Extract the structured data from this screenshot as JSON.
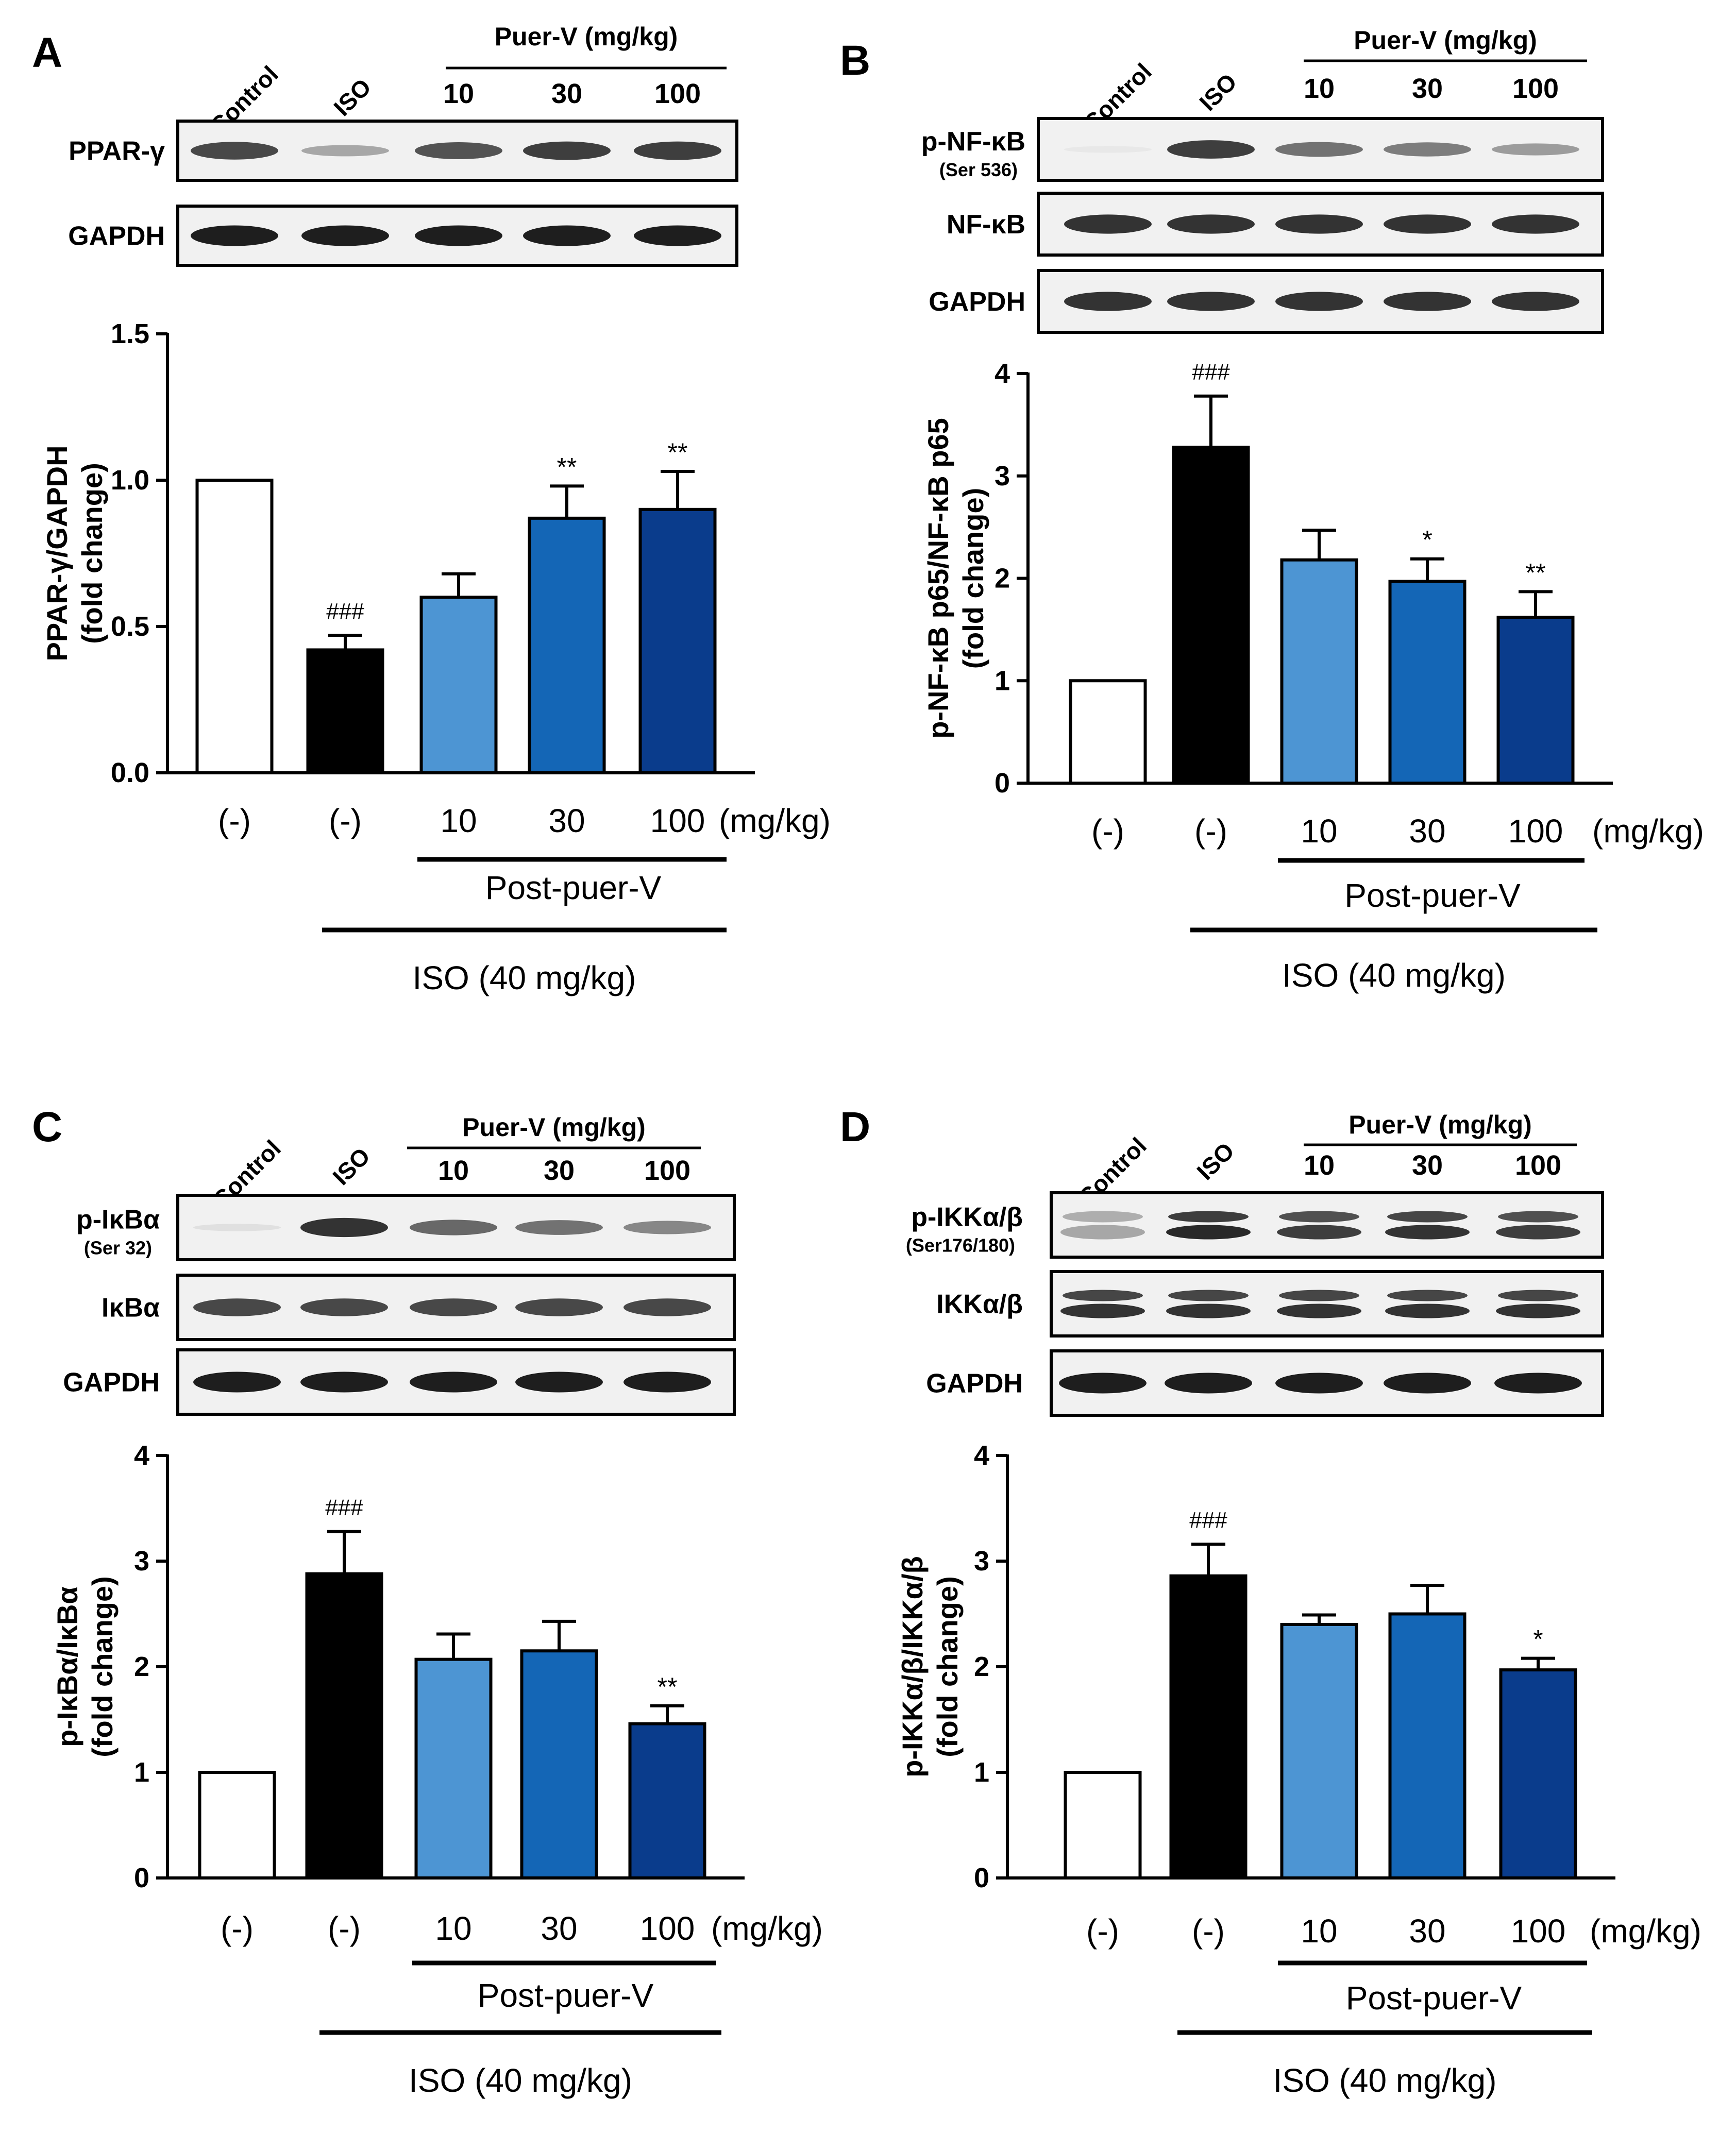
{
  "figure": {
    "header": {
      "control": "Control",
      "iso": "ISO",
      "puer_v": "Puer-V (mg/kg)",
      "doses": [
        "10",
        "30",
        "100"
      ]
    },
    "x_axis": {
      "groups": [
        "(-)",
        "(-)",
        "10",
        "30",
        "100"
      ],
      "unit": "(mg/kg)",
      "post_label": "Post-puer-V",
      "iso_label": "ISO (40 mg/kg)"
    },
    "colors": {
      "control_bar": "#ffffff",
      "iso_bar": "#000000",
      "dose_10": "#4d95d3",
      "dose_30": "#1466b6",
      "dose_100": "#0a3c8c",
      "blot_background": "#f1f1f1",
      "band": "#1e1e1e"
    }
  },
  "chart_data": [
    {
      "panel": "A",
      "type": "bar",
      "blots": [
        {
          "label": "PPAR-γ",
          "sublabel": "",
          "intensities": [
            0.8,
            0.35,
            0.75,
            0.85,
            0.85
          ],
          "double": false
        },
        {
          "label": "GAPDH",
          "sublabel": "",
          "intensities": [
            1,
            1,
            1,
            1,
            1
          ],
          "double": false
        }
      ],
      "categories": [
        "Control",
        "ISO",
        "ISO + Puer-V 10",
        "ISO + Puer-V 30",
        "ISO + Puer-V 100"
      ],
      "values": [
        1.0,
        0.42,
        0.6,
        0.87,
        0.9
      ],
      "errors": [
        0,
        0.05,
        0.08,
        0.11,
        0.13
      ],
      "annotations": [
        "",
        "###",
        "",
        "**",
        "**"
      ],
      "ylabel": [
        "PPAR-γ/GAPDH",
        "(fold change)"
      ],
      "ylim": [
        0,
        1.5
      ],
      "yticks": [
        0,
        0.5,
        1.0,
        1.5
      ],
      "ytick_labels": [
        "0.0",
        "0.5",
        "1.0",
        "1.5"
      ]
    },
    {
      "panel": "B",
      "type": "bar",
      "blots": [
        {
          "label": "p-NF-κB",
          "sublabel": "(Ser 536)",
          "intensities": [
            0.03,
            0.85,
            0.6,
            0.55,
            0.4
          ],
          "double": false
        },
        {
          "label": "NF-κB",
          "sublabel": "",
          "intensities": [
            0.9,
            0.9,
            0.9,
            0.9,
            0.9
          ],
          "double": false
        },
        {
          "label": "GAPDH",
          "sublabel": "",
          "intensities": [
            0.9,
            0.9,
            0.9,
            0.9,
            0.9
          ],
          "double": false
        }
      ],
      "categories": [
        "Control",
        "ISO",
        "ISO + Puer-V 10",
        "ISO + Puer-V 30",
        "ISO + Puer-V 100"
      ],
      "values": [
        1.0,
        3.28,
        2.18,
        1.97,
        1.62
      ],
      "errors": [
        0,
        0.5,
        0.29,
        0.22,
        0.25
      ],
      "annotations": [
        "",
        "###",
        "",
        "*",
        "**"
      ],
      "ylabel": [
        "p-NF-κB p65/NF-κB p65",
        "(fold change)"
      ],
      "ylim": [
        0,
        4
      ],
      "yticks": [
        0,
        1,
        2,
        3,
        4
      ],
      "ytick_labels": [
        "0",
        "1",
        "2",
        "3",
        "4"
      ]
    },
    {
      "panel": "C",
      "type": "bar",
      "blots": [
        {
          "label": "p-IκBα",
          "sublabel": "(Ser 32)",
          "intensities": [
            0.08,
            0.9,
            0.65,
            0.6,
            0.5
          ],
          "double": false
        },
        {
          "label": "IκBα",
          "sublabel": "",
          "intensities": [
            0.8,
            0.8,
            0.8,
            0.8,
            0.8
          ],
          "double": false
        },
        {
          "label": "GAPDH",
          "sublabel": "",
          "intensities": [
            1,
            1,
            1,
            1,
            1
          ],
          "double": false
        }
      ],
      "categories": [
        "Control",
        "ISO",
        "ISO + Puer-V 10",
        "ISO + Puer-V 30",
        "ISO + Puer-V 100"
      ],
      "values": [
        1.0,
        2.88,
        2.07,
        2.15,
        1.46
      ],
      "errors": [
        0,
        0.4,
        0.24,
        0.28,
        0.17
      ],
      "annotations": [
        "",
        "###",
        "",
        "",
        "**"
      ],
      "ylabel": [
        "p-IκBα/IκBα",
        "(fold change)"
      ],
      "ylim": [
        0,
        4
      ],
      "yticks": [
        0,
        1,
        2,
        3,
        4
      ],
      "ytick_labels": [
        "0",
        "1",
        "2",
        "3",
        "4"
      ]
    },
    {
      "panel": "D",
      "type": "bar",
      "blots": [
        {
          "label": "p-IKKα/β",
          "sublabel": "(Ser176/180)",
          "intensities": [
            0.35,
            0.95,
            0.85,
            0.9,
            0.85
          ],
          "double": true
        },
        {
          "label": "IKKα/β",
          "sublabel": "",
          "intensities": [
            0.9,
            0.9,
            0.9,
            0.9,
            0.9
          ],
          "double": true
        },
        {
          "label": "GAPDH",
          "sublabel": "",
          "intensities": [
            1,
            1,
            1,
            1,
            1
          ],
          "double": false
        }
      ],
      "categories": [
        "Control",
        "ISO",
        "ISO + Puer-V 10",
        "ISO + Puer-V 30",
        "ISO + Puer-V 100"
      ],
      "values": [
        1.0,
        2.86,
        2.4,
        2.5,
        1.97
      ],
      "errors": [
        0,
        0.3,
        0.09,
        0.27,
        0.11
      ],
      "annotations": [
        "",
        "###",
        "",
        "",
        "*"
      ],
      "ylabel": [
        "p-IKKα/β/IKKα/β",
        "(fold change)"
      ],
      "ylim": [
        0,
        4
      ],
      "yticks": [
        0,
        1,
        2,
        3,
        4
      ],
      "ytick_labels": [
        "0",
        "1",
        "2",
        "3",
        "4"
      ]
    }
  ]
}
